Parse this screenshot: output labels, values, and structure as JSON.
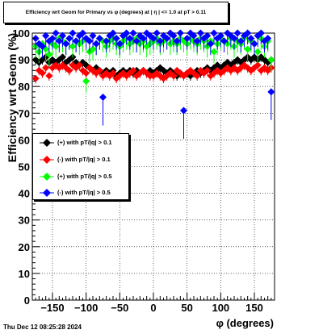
{
  "title": "Efficiency wrt Geom for Primary vs φ (degrees) at |  η  | <= 1.0 at pT > 0.11",
  "footer": "Thu Dec 12 08:25:28 2024",
  "chart_data": {
    "type": "scatter",
    "title": "Efficiency wrt Geom for Primary vs φ (degrees) at |  η  | <= 1.0 at pT > 0.11",
    "xlabel": "φ (degrees)",
    "ylabel": "Efficiency wrt Geom (%)",
    "xlim": [
      -180,
      180
    ],
    "ylim": [
      0,
      100
    ],
    "xticks": [
      -150,
      -100,
      -50,
      0,
      50,
      100,
      150
    ],
    "yticks": [
      0,
      10,
      20,
      30,
      40,
      50,
      60,
      70,
      80,
      90,
      100
    ],
    "grid": true,
    "legend_position": "middle-left",
    "series": [
      {
        "name": "(+) with pT/|q| > 0.1",
        "color": "#000000",
        "points": [
          [
            -175,
            90
          ],
          [
            -170,
            89
          ],
          [
            -165,
            90
          ],
          [
            -160,
            91
          ],
          [
            -155,
            89
          ],
          [
            -150,
            90
          ],
          [
            -145,
            89
          ],
          [
            -140,
            90
          ],
          [
            -135,
            91
          ],
          [
            -130,
            89
          ],
          [
            -125,
            90
          ],
          [
            -120,
            91
          ],
          [
            -115,
            89
          ],
          [
            -110,
            88
          ],
          [
            -105,
            89
          ],
          [
            -100,
            88
          ],
          [
            -95,
            87
          ],
          [
            -90,
            86
          ],
          [
            -85,
            87
          ],
          [
            -80,
            86
          ],
          [
            -75,
            85
          ],
          [
            -70,
            86
          ],
          [
            -65,
            85
          ],
          [
            -60,
            86
          ],
          [
            -55,
            84
          ],
          [
            -50,
            85
          ],
          [
            -45,
            86
          ],
          [
            -40,
            85
          ],
          [
            -35,
            86
          ],
          [
            -30,
            85
          ],
          [
            -25,
            86
          ],
          [
            -20,
            85
          ],
          [
            -15,
            86
          ],
          [
            -10,
            85
          ],
          [
            -5,
            86
          ],
          [
            0,
            85
          ],
          [
            5,
            86
          ],
          [
            10,
            87
          ],
          [
            15,
            86
          ],
          [
            20,
            85
          ],
          [
            25,
            86
          ],
          [
            30,
            85
          ],
          [
            35,
            84
          ],
          [
            40,
            85
          ],
          [
            45,
            84
          ],
          [
            50,
            85
          ],
          [
            55,
            84
          ],
          [
            60,
            85
          ],
          [
            65,
            86
          ],
          [
            70,
            85
          ],
          [
            75,
            86
          ],
          [
            80,
            87
          ],
          [
            85,
            86
          ],
          [
            90,
            87
          ],
          [
            95,
            88
          ],
          [
            100,
            87
          ],
          [
            105,
            88
          ],
          [
            110,
            89
          ],
          [
            115,
            88
          ],
          [
            120,
            89
          ],
          [
            125,
            90
          ],
          [
            130,
            89
          ],
          [
            135,
            90
          ],
          [
            140,
            91
          ],
          [
            145,
            90
          ],
          [
            150,
            91
          ],
          [
            155,
            90
          ],
          [
            160,
            91
          ],
          [
            165,
            90
          ],
          [
            170,
            89
          ],
          [
            175,
            90
          ]
        ]
      },
      {
        "name": "(-) with pT/|q| > 0.1",
        "color": "#ff0000",
        "points": [
          [
            -175,
            83
          ],
          [
            -170,
            86
          ],
          [
            -165,
            85
          ],
          [
            -160,
            87
          ],
          [
            -155,
            84
          ],
          [
            -150,
            87
          ],
          [
            -145,
            88
          ],
          [
            -140,
            87
          ],
          [
            -135,
            88
          ],
          [
            -130,
            87
          ],
          [
            -125,
            86
          ],
          [
            -120,
            88
          ],
          [
            -115,
            87
          ],
          [
            -110,
            88
          ],
          [
            -105,
            86
          ],
          [
            -100,
            85
          ],
          [
            -95,
            87
          ],
          [
            -90,
            86
          ],
          [
            -85,
            85
          ],
          [
            -80,
            86
          ],
          [
            -75,
            84
          ],
          [
            -70,
            85
          ],
          [
            -65,
            84
          ],
          [
            -60,
            85
          ],
          [
            -55,
            83
          ],
          [
            -50,
            84
          ],
          [
            -45,
            85
          ],
          [
            -40,
            84
          ],
          [
            -35,
            85
          ],
          [
            -30,
            86
          ],
          [
            -25,
            84
          ],
          [
            -20,
            85
          ],
          [
            -15,
            86
          ],
          [
            -10,
            85
          ],
          [
            -5,
            84
          ],
          [
            0,
            84
          ],
          [
            5,
            85
          ],
          [
            10,
            84
          ],
          [
            15,
            83
          ],
          [
            20,
            84
          ],
          [
            25,
            85
          ],
          [
            30,
            84
          ],
          [
            35,
            86
          ],
          [
            40,
            85
          ],
          [
            45,
            84
          ],
          [
            50,
            85
          ],
          [
            55,
            86
          ],
          [
            60,
            85
          ],
          [
            65,
            84
          ],
          [
            70,
            86
          ],
          [
            75,
            85
          ],
          [
            80,
            86
          ],
          [
            85,
            84
          ],
          [
            90,
            85
          ],
          [
            95,
            86
          ],
          [
            100,
            85
          ],
          [
            105,
            86
          ],
          [
            110,
            87
          ],
          [
            115,
            86
          ],
          [
            120,
            87
          ],
          [
            125,
            86
          ],
          [
            130,
            87
          ],
          [
            135,
            88
          ],
          [
            140,
            87
          ],
          [
            145,
            86
          ],
          [
            150,
            87
          ],
          [
            155,
            88
          ],
          [
            160,
            86
          ],
          [
            165,
            87
          ],
          [
            170,
            86
          ],
          [
            175,
            87
          ]
        ]
      },
      {
        "name": "(+) with pT/|q| > 0.5",
        "color": "#00ff00",
        "points": [
          [
            -175,
            95
          ],
          [
            -170,
            93
          ],
          [
            -165,
            96
          ],
          [
            -160,
            94
          ],
          [
            -155,
            92
          ],
          [
            -150,
            96
          ],
          [
            -145,
            95
          ],
          [
            -140,
            98
          ],
          [
            -135,
            97
          ],
          [
            -130,
            96
          ],
          [
            -125,
            98
          ],
          [
            -120,
            95
          ],
          [
            -115,
            97
          ],
          [
            -110,
            96
          ],
          [
            -105,
            97
          ],
          [
            -100,
            82
          ],
          [
            -95,
            93
          ],
          [
            -90,
            94
          ],
          [
            -85,
            96
          ],
          [
            -80,
            98
          ],
          [
            -75,
            97
          ],
          [
            -70,
            95
          ],
          [
            -65,
            97
          ],
          [
            -60,
            98
          ],
          [
            -55,
            96
          ],
          [
            -50,
            95
          ],
          [
            -45,
            97
          ],
          [
            -40,
            98
          ],
          [
            -35,
            96
          ],
          [
            -30,
            97
          ],
          [
            -25,
            98
          ],
          [
            -20,
            96
          ],
          [
            -15,
            97
          ],
          [
            -10,
            95
          ],
          [
            -5,
            96
          ],
          [
            0,
            97
          ],
          [
            5,
            98
          ],
          [
            10,
            96
          ],
          [
            15,
            97
          ],
          [
            20,
            98
          ],
          [
            25,
            96
          ],
          [
            30,
            97
          ],
          [
            35,
            96
          ],
          [
            40,
            98
          ],
          [
            45,
            97
          ],
          [
            50,
            96
          ],
          [
            55,
            98
          ],
          [
            60,
            97
          ],
          [
            65,
            96
          ],
          [
            70,
            98
          ],
          [
            75,
            97
          ],
          [
            80,
            95
          ],
          [
            85,
            97
          ],
          [
            90,
            93
          ],
          [
            95,
            96
          ],
          [
            100,
            98
          ],
          [
            105,
            97
          ],
          [
            110,
            96
          ],
          [
            115,
            98
          ],
          [
            120,
            95
          ],
          [
            125,
            97
          ],
          [
            130,
            96
          ],
          [
            135,
            98
          ],
          [
            140,
            94
          ],
          [
            145,
            97
          ],
          [
            150,
            96
          ],
          [
            155,
            93
          ],
          [
            160,
            98
          ],
          [
            165,
            95
          ],
          [
            170,
            97
          ],
          [
            175,
            90
          ]
        ]
      },
      {
        "name": "(-) with pT/|q| > 0.5",
        "color": "#0000ff",
        "points": [
          [
            -175,
            98
          ],
          [
            -170,
            96
          ],
          [
            -165,
            95
          ],
          [
            -160,
            99
          ],
          [
            -155,
            97
          ],
          [
            -150,
            98
          ],
          [
            -145,
            100
          ],
          [
            -140,
            97
          ],
          [
            -135,
            99
          ],
          [
            -130,
            96
          ],
          [
            -125,
            98
          ],
          [
            -120,
            100
          ],
          [
            -115,
            97
          ],
          [
            -110,
            99
          ],
          [
            -105,
            100
          ],
          [
            -100,
            98
          ],
          [
            -95,
            97
          ],
          [
            -90,
            99
          ],
          [
            -85,
            96
          ],
          [
            -80,
            98
          ],
          [
            -75,
            76
          ],
          [
            -70,
            97
          ],
          [
            -65,
            99
          ],
          [
            -60,
            100
          ],
          [
            -55,
            98
          ],
          [
            -50,
            96
          ],
          [
            -45,
            99
          ],
          [
            -40,
            100
          ],
          [
            -35,
            98
          ],
          [
            -30,
            100
          ],
          [
            -25,
            97
          ],
          [
            -20,
            99
          ],
          [
            -15,
            98
          ],
          [
            -10,
            100
          ],
          [
            -5,
            99
          ],
          [
            0,
            98
          ],
          [
            5,
            100
          ],
          [
            10,
            97
          ],
          [
            15,
            99
          ],
          [
            20,
            98
          ],
          [
            25,
            100
          ],
          [
            30,
            99
          ],
          [
            35,
            97
          ],
          [
            40,
            100
          ],
          [
            45,
            71
          ],
          [
            50,
            98
          ],
          [
            55,
            100
          ],
          [
            60,
            99
          ],
          [
            65,
            97
          ],
          [
            70,
            100
          ],
          [
            75,
            98
          ],
          [
            80,
            99
          ],
          [
            85,
            96
          ],
          [
            90,
            100
          ],
          [
            95,
            98
          ],
          [
            100,
            99
          ],
          [
            105,
            97
          ],
          [
            110,
            100
          ],
          [
            115,
            99
          ],
          [
            120,
            98
          ],
          [
            125,
            100
          ],
          [
            130,
            97
          ],
          [
            135,
            99
          ],
          [
            140,
            100
          ],
          [
            145,
            98
          ],
          [
            150,
            96
          ],
          [
            155,
            99
          ],
          [
            160,
            100
          ],
          [
            165,
            97
          ],
          [
            170,
            98
          ],
          [
            175,
            78
          ]
        ]
      }
    ]
  }
}
